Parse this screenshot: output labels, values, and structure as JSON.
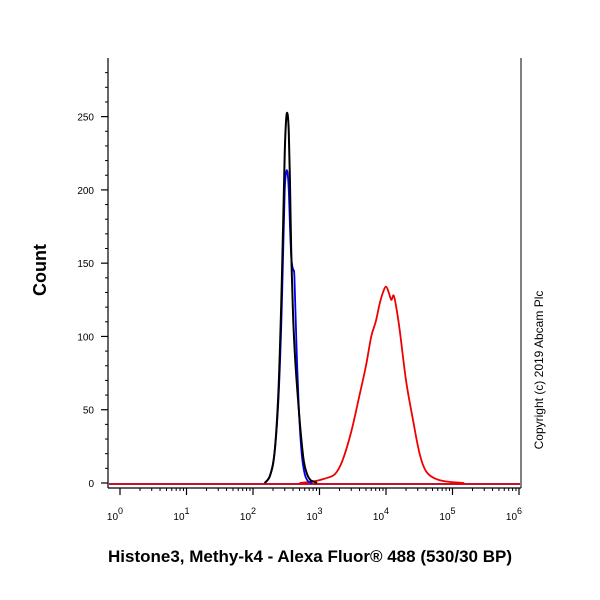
{
  "chart_data": {
    "type": "line",
    "title": "",
    "xlabel": "Histone3, Methy-k4 - Alexa Fluor® 488 (530/30 BP)",
    "ylabel": "Count",
    "x_scale": "log",
    "xlim": [
      1,
      1000000
    ],
    "ylim": [
      0,
      290
    ],
    "x_tick_labels": [
      {
        "base": "10",
        "exp": "0"
      },
      {
        "base": "10",
        "exp": "1"
      },
      {
        "base": "10",
        "exp": "2"
      },
      {
        "base": "10",
        "exp": "3"
      },
      {
        "base": "10",
        "exp": "4"
      },
      {
        "base": "10",
        "exp": "5"
      },
      {
        "base": "10",
        "exp": "6"
      }
    ],
    "y_ticks": [
      0,
      50,
      100,
      150,
      200,
      250
    ],
    "grid": false,
    "legend": "none",
    "series": [
      {
        "color": "#000000",
        "x": [
          150,
          180,
          210,
          240,
          265,
          285,
          300,
          315,
          330,
          345,
          360,
          375,
          400,
          430,
          470,
          520,
          580,
          650,
          730,
          820,
          920
        ],
        "y": [
          0,
          5,
          20,
          60,
          120,
          180,
          225,
          248,
          252,
          240,
          205,
          160,
          115,
          85,
          60,
          35,
          15,
          6,
          2,
          1,
          0
        ]
      },
      {
        "color": "#0000ee",
        "x": [
          150,
          180,
          210,
          240,
          265,
          285,
          300,
          315,
          330,
          345,
          360,
          375,
          390,
          405,
          420,
          450,
          490,
          540,
          600,
          680,
          780
        ],
        "y": [
          0,
          5,
          20,
          55,
          105,
          160,
          200,
          212,
          212,
          200,
          175,
          155,
          148,
          145,
          140,
          95,
          50,
          20,
          6,
          1,
          0
        ]
      },
      {
        "color": "#ee0000",
        "x": [
          500,
          800,
          1200,
          1700,
          2200,
          3000,
          4000,
          5000,
          6000,
          7000,
          8000,
          9000,
          10000,
          11000,
          12000,
          13000,
          14000,
          16000,
          20000,
          25000,
          32000,
          40000,
          55000,
          80000,
          150000
        ],
        "y": [
          0,
          1,
          3,
          6,
          15,
          35,
          60,
          80,
          100,
          110,
          122,
          130,
          134,
          130,
          125,
          128,
          122,
          105,
          70,
          45,
          20,
          8,
          3,
          1,
          0
        ]
      }
    ]
  },
  "copyright": "Copyright (c) 2019 Abcam Plc"
}
